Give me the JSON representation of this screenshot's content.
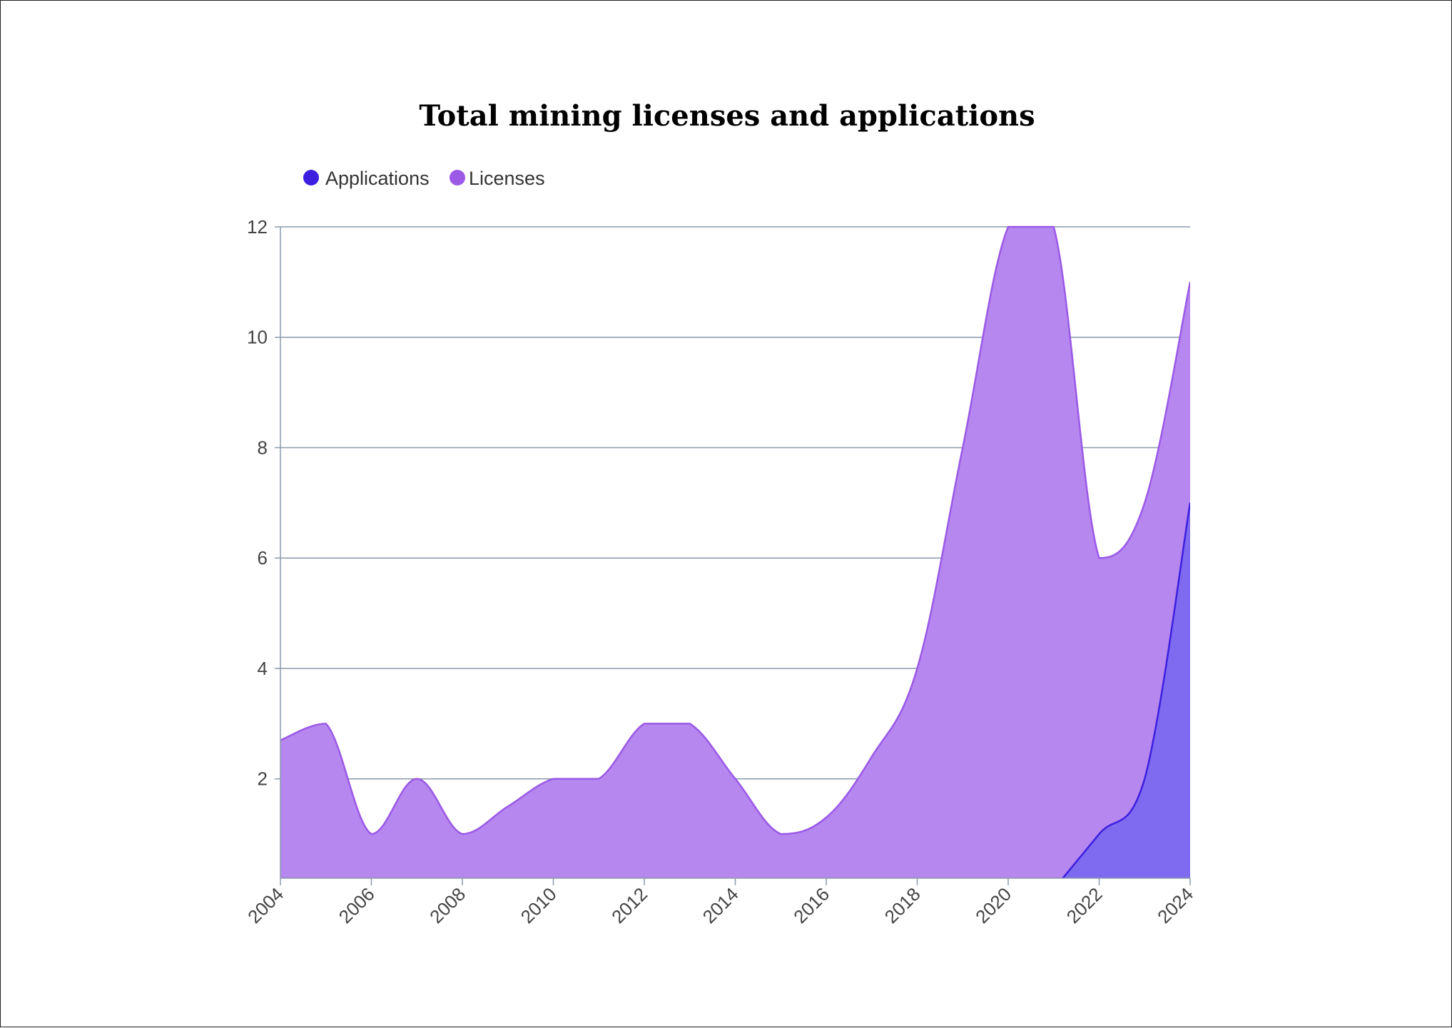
{
  "chart_data": {
    "type": "area",
    "title": "Total mining licenses and applications",
    "xlabel": "",
    "ylabel": "",
    "x": [
      2004,
      2005,
      2006,
      2007,
      2008,
      2009,
      2010,
      2011,
      2012,
      2013,
      2014,
      2015,
      2016,
      2017,
      2018,
      2019,
      2020,
      2021,
      2022,
      2023,
      2024
    ],
    "series": [
      {
        "name": "Applications",
        "color": "#3d1fe0",
        "fill": "#7f6bef",
        "values": [
          null,
          null,
          null,
          null,
          null,
          null,
          null,
          null,
          null,
          null,
          null,
          null,
          null,
          null,
          null,
          null,
          null,
          0,
          1,
          2,
          7
        ]
      },
      {
        "name": "Licenses",
        "color": "#9b59e6",
        "fill": "#b587ef",
        "values": [
          2.7,
          3,
          1,
          2,
          1,
          1.5,
          2,
          2,
          3,
          3,
          2,
          1,
          1.3,
          2.4,
          4,
          8,
          12,
          12,
          6,
          7,
          11
        ]
      }
    ],
    "xticks": [
      "2004",
      "2006",
      "2008",
      "2010",
      "2012",
      "2014",
      "2016",
      "2018",
      "2020",
      "2022",
      "2024"
    ],
    "yticks": [
      "2",
      "4",
      "6",
      "8",
      "10",
      "12"
    ],
    "ylim": [
      0.2,
      12
    ],
    "xlim": [
      2004,
      2024
    ],
    "grid": true,
    "legend_position": "top-left",
    "colors": {
      "grid": "#8a9aab",
      "axis": "#8a9aab"
    }
  }
}
